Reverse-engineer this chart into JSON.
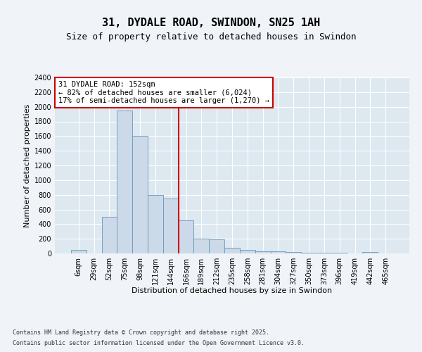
{
  "title1": "31, DYDALE ROAD, SWINDON, SN25 1AH",
  "title2": "Size of property relative to detached houses in Swindon",
  "xlabel": "Distribution of detached houses by size in Swindon",
  "ylabel": "Number of detached properties",
  "bin_labels": [
    "6sqm",
    "29sqm",
    "52sqm",
    "75sqm",
    "98sqm",
    "121sqm",
    "144sqm",
    "166sqm",
    "189sqm",
    "212sqm",
    "235sqm",
    "258sqm",
    "281sqm",
    "304sqm",
    "327sqm",
    "350sqm",
    "373sqm",
    "396sqm",
    "419sqm",
    "442sqm",
    "465sqm"
  ],
  "bar_heights": [
    50,
    0,
    500,
    1950,
    1600,
    800,
    750,
    450,
    200,
    190,
    75,
    50,
    30,
    25,
    15,
    10,
    5,
    5,
    0,
    20,
    0
  ],
  "bar_color": "#ccd9e8",
  "bar_edge_color": "#6699bb",
  "vline_bin": 6,
  "vline_color": "#cc0000",
  "ylim": [
    0,
    2400
  ],
  "yticks": [
    0,
    200,
    400,
    600,
    800,
    1000,
    1200,
    1400,
    1600,
    1800,
    2000,
    2200,
    2400
  ],
  "annotation_text": "31 DYDALE ROAD: 152sqm\n← 82% of detached houses are smaller (6,024)\n17% of semi-detached houses are larger (1,270) →",
  "annotation_box_facecolor": "#ffffff",
  "annotation_box_edgecolor": "#cc0000",
  "footer1": "Contains HM Land Registry data © Crown copyright and database right 2025.",
  "footer2": "Contains public sector information licensed under the Open Government Licence v3.0.",
  "fig_facecolor": "#f0f4f8",
  "axes_facecolor": "#dde8f0",
  "grid_color": "#ffffff",
  "title1_fontsize": 11,
  "title2_fontsize": 9,
  "tick_fontsize": 7,
  "ylabel_fontsize": 8,
  "xlabel_fontsize": 8,
  "footer_fontsize": 6
}
